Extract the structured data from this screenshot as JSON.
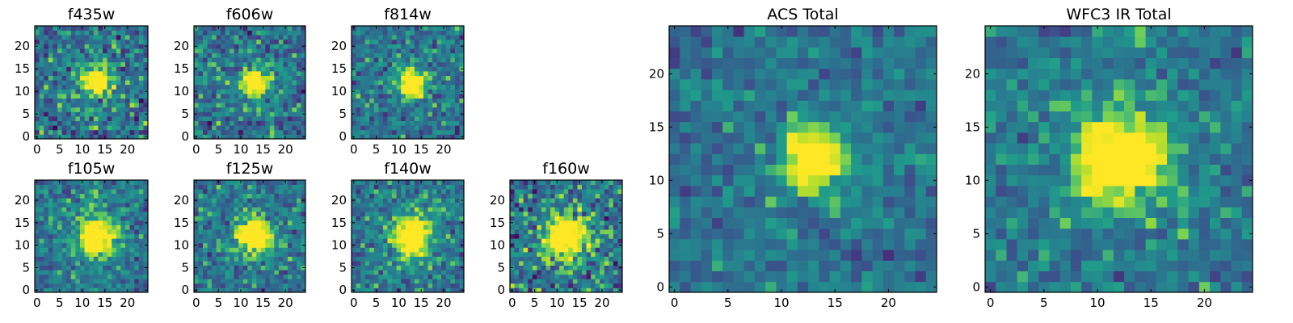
{
  "chart_data": [
    {
      "type": "heatmap",
      "title": "f435w",
      "grid": "25x25",
      "xticks": [
        0,
        5,
        10,
        15,
        20
      ],
      "yticks": [
        0,
        5,
        10,
        15,
        20
      ],
      "source_center": [
        13,
        12
      ],
      "peak_radius": 1.8,
      "noise": 0.2,
      "colormap": "viridis"
    },
    {
      "type": "heatmap",
      "title": "f606w",
      "grid": "25x25",
      "xticks": [
        0,
        5,
        10,
        15,
        20
      ],
      "yticks": [
        0,
        5,
        10,
        15,
        20
      ],
      "source_center": [
        13,
        12
      ],
      "peak_radius": 1.8,
      "noise": 0.18,
      "colormap": "viridis"
    },
    {
      "type": "heatmap",
      "title": "f814w",
      "grid": "25x25",
      "xticks": [
        0,
        5,
        10,
        15,
        20
      ],
      "yticks": [
        0,
        5,
        10,
        15,
        20
      ],
      "source_center": [
        13,
        12
      ],
      "peak_radius": 1.8,
      "noise": 0.17,
      "colormap": "viridis"
    },
    {
      "type": "heatmap",
      "title": "f105w",
      "grid": "25x25",
      "xticks": [
        0,
        5,
        10,
        15,
        20
      ],
      "yticks": [
        0,
        5,
        10,
        15,
        20
      ],
      "source_center": [
        13,
        12
      ],
      "peak_radius": 2.6,
      "noise": 0.16,
      "colormap": "viridis"
    },
    {
      "type": "heatmap",
      "title": "f125w",
      "grid": "25x25",
      "xticks": [
        0,
        5,
        10,
        15,
        20
      ],
      "yticks": [
        0,
        5,
        10,
        15,
        20
      ],
      "source_center": [
        13,
        12
      ],
      "peak_radius": 2.4,
      "noise": 0.17,
      "colormap": "viridis"
    },
    {
      "type": "heatmap",
      "title": "f140w",
      "grid": "25x25",
      "xticks": [
        0,
        5,
        10,
        15,
        20
      ],
      "yticks": [
        0,
        5,
        10,
        15,
        20
      ],
      "source_center": [
        13,
        12
      ],
      "peak_radius": 2.6,
      "noise": 0.16,
      "colormap": "viridis"
    },
    {
      "type": "heatmap",
      "title": "f160w",
      "grid": "25x25",
      "xticks": [
        0,
        5,
        10,
        15,
        20
      ],
      "yticks": [
        0,
        5,
        10,
        15,
        20
      ],
      "source_center": [
        12,
        12
      ],
      "peak_radius": 2.8,
      "noise": 0.22,
      "colormap": "viridis"
    },
    {
      "type": "heatmap",
      "title": "ACS Total",
      "grid": "25x25",
      "xticks": [
        0,
        5,
        10,
        15,
        20
      ],
      "yticks": [
        0,
        5,
        10,
        15,
        20
      ],
      "source_center": [
        13,
        12
      ],
      "peak_radius": 1.7,
      "noise": 0.12,
      "colormap": "viridis"
    },
    {
      "type": "heatmap",
      "title": "WFC3 IR Total",
      "grid": "25x25",
      "xticks": [
        0,
        5,
        10,
        15,
        20
      ],
      "yticks": [
        0,
        5,
        10,
        15,
        20
      ],
      "source_center": [
        12,
        12
      ],
      "peak_radius": 2.5,
      "noise": 0.14,
      "colormap": "viridis"
    }
  ],
  "colors": {
    "viridis_stops": [
      "#440154",
      "#482777",
      "#3f4a8a",
      "#31678e",
      "#26838f",
      "#1f9d8a",
      "#6cce5a",
      "#b6de2b",
      "#fee825"
    ]
  }
}
